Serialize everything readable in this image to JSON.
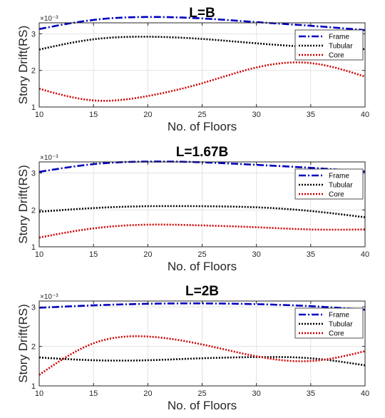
{
  "chart_data": [
    {
      "type": "line",
      "title": "L=B",
      "xlabel": "No. of Floors",
      "ylabel": "Story Drift(RS)",
      "y_multiplier_label": "×10⁻³",
      "xlim": [
        10,
        40
      ],
      "ylim": [
        1,
        3.3
      ],
      "xticks": [
        "10",
        "15",
        "20",
        "25",
        "30",
        "35",
        "40"
      ],
      "yticks": [
        "1",
        "2",
        "3"
      ],
      "grid": true,
      "legend_position": "top-right",
      "series": [
        {
          "name": "Frame",
          "color": "#0000c0",
          "dash": "10,3,2,3",
          "x": [
            10,
            15,
            20,
            25,
            30,
            35,
            40
          ],
          "y": [
            3.13,
            3.38,
            3.46,
            3.42,
            3.32,
            3.22,
            3.1
          ]
        },
        {
          "name": "Tubular",
          "color": "#000000",
          "dash": "2,2",
          "x": [
            10,
            15,
            20,
            25,
            30,
            35,
            40
          ],
          "y": [
            2.57,
            2.85,
            2.92,
            2.86,
            2.74,
            2.64,
            2.58
          ]
        },
        {
          "name": "Core",
          "color": "#d00000",
          "dash": "2,2",
          "x": [
            10,
            15,
            20,
            25,
            30,
            35,
            40
          ],
          "y": [
            1.5,
            1.18,
            1.3,
            1.65,
            2.08,
            2.2,
            1.83
          ]
        }
      ]
    },
    {
      "type": "line",
      "title": "L=1.67B",
      "xlabel": "No. of Floors",
      "ylabel": "Story Drift(RS)",
      "y_multiplier_label": "×10⁻³",
      "xlim": [
        10,
        40
      ],
      "ylim": [
        1,
        3.3
      ],
      "xticks": [
        "10",
        "15",
        "20",
        "25",
        "30",
        "35",
        "40"
      ],
      "yticks": [
        "1",
        "2",
        "3"
      ],
      "grid": true,
      "legend_position": "top-right",
      "series": [
        {
          "name": "Frame",
          "color": "#0000c0",
          "dash": "10,3,2,3",
          "x": [
            10,
            15,
            20,
            25,
            30,
            35,
            40
          ],
          "y": [
            3.03,
            3.24,
            3.31,
            3.29,
            3.22,
            3.14,
            3.04
          ]
        },
        {
          "name": "Tubular",
          "color": "#000000",
          "dash": "2,2",
          "x": [
            10,
            15,
            20,
            25,
            30,
            35,
            40
          ],
          "y": [
            1.95,
            2.05,
            2.1,
            2.1,
            2.07,
            1.97,
            1.8
          ]
        },
        {
          "name": "Core",
          "color": "#d00000",
          "dash": "2,2",
          "x": [
            10,
            15,
            20,
            25,
            30,
            35,
            40
          ],
          "y": [
            1.25,
            1.5,
            1.6,
            1.58,
            1.53,
            1.47,
            1.47
          ]
        }
      ]
    },
    {
      "type": "line",
      "title": "L=2B",
      "xlabel": "No. of Floors",
      "ylabel": "Story Drift(RS)",
      "y_multiplier_label": "×10⁻³",
      "xlim": [
        10,
        40
      ],
      "ylim": [
        1,
        3.15
      ],
      "xticks": [
        "10",
        "15",
        "20",
        "25",
        "30",
        "35",
        "40"
      ],
      "yticks": [
        "1",
        "2",
        "3"
      ],
      "grid": true,
      "legend_position": "top-right",
      "series": [
        {
          "name": "Frame",
          "color": "#0000c0",
          "dash": "10,3,2,3",
          "x": [
            10,
            15,
            20,
            25,
            30,
            35,
            40
          ],
          "y": [
            2.98,
            3.04,
            3.08,
            3.09,
            3.07,
            3.02,
            2.93
          ]
        },
        {
          "name": "Tubular",
          "color": "#000000",
          "dash": "2,2",
          "x": [
            10,
            15,
            20,
            25,
            30,
            35,
            40
          ],
          "y": [
            1.72,
            1.65,
            1.65,
            1.7,
            1.73,
            1.7,
            1.52
          ]
        },
        {
          "name": "Core",
          "color": "#d00000",
          "dash": "2,2",
          "x": [
            10,
            15,
            20,
            25,
            30,
            35,
            40
          ],
          "y": [
            1.28,
            2.08,
            2.25,
            2.05,
            1.75,
            1.63,
            1.88
          ]
        }
      ]
    }
  ]
}
